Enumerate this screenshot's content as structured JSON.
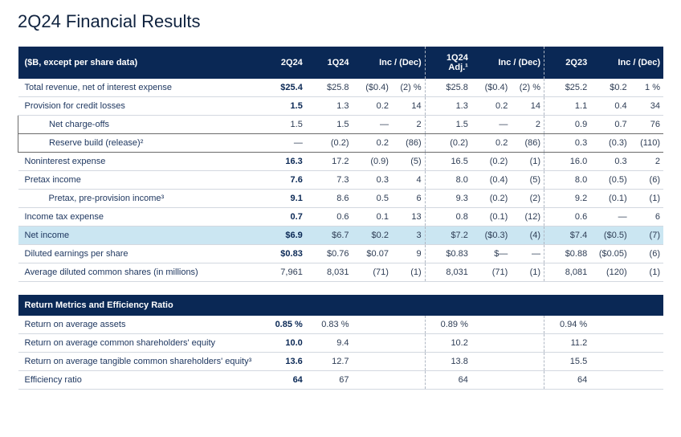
{
  "title": "2Q24 Financial Results",
  "headers": {
    "label": "($B, except per share data)",
    "c1": "2Q24",
    "c2": "1Q24",
    "c3": "Inc / (Dec)",
    "c4": "1Q24 Adj.¹",
    "c5": "Inc / (Dec)",
    "c6": "2Q23",
    "c7": "Inc / (Dec)"
  },
  "rows": [
    {
      "class": "bold",
      "cells": [
        "Total revenue, net of interest expense",
        "$25.4",
        "$25.8",
        "($0.4)",
        "(2) %",
        "$25.8",
        "($0.4)",
        "(2) %",
        "$25.2",
        "$0.2",
        "1  %"
      ]
    },
    {
      "class": "bold",
      "cells": [
        "Provision for credit losses",
        "1.5",
        "1.3",
        "0.2",
        "14",
        "1.3",
        "0.2",
        "14",
        "1.1",
        "0.4",
        "34"
      ]
    },
    {
      "class": "indent boxrow",
      "cells": [
        "Net charge-offs",
        "1.5",
        "1.5",
        "—",
        "2",
        "1.5",
        "—",
        "2",
        "0.9",
        "0.7",
        "76"
      ]
    },
    {
      "class": "indent boxrow",
      "cells": [
        "Reserve build (release)²",
        "—",
        "(0.2)",
        "0.2",
        "(86)",
        "(0.2)",
        "0.2",
        "(86)",
        "0.3",
        "(0.3)",
        "(110)"
      ]
    },
    {
      "class": "bold thickline",
      "cells": [
        "Noninterest expense",
        "16.3",
        "17.2",
        "(0.9)",
        "(5)",
        "16.5",
        "(0.2)",
        "(1)",
        "16.0",
        "0.3",
        "2"
      ]
    },
    {
      "class": "bold thickline",
      "cells": [
        "Pretax income",
        "7.6",
        "7.3",
        "0.3",
        "4",
        "8.0",
        "(0.4)",
        "(5)",
        "8.0",
        "(0.5)",
        "(6)"
      ]
    },
    {
      "class": "indent bold",
      "cells": [
        "Pretax, pre-provision income³",
        "9.1",
        "8.6",
        "0.5",
        "6",
        "9.3",
        "(0.2)",
        "(2)",
        "9.2",
        "(0.1)",
        "(1)"
      ]
    },
    {
      "class": "bold",
      "cells": [
        "Income tax expense",
        "0.7",
        "0.6",
        "0.1",
        "13",
        "0.8",
        "(0.1)",
        "(12)",
        "0.6",
        "—",
        "6"
      ]
    },
    {
      "class": "bold hl",
      "cells": [
        "Net income",
        "$6.9",
        "$6.7",
        "$0.2",
        "3",
        "$7.2",
        "($0.3)",
        "(4)",
        "$7.4",
        "($0.5)",
        "(7)"
      ]
    },
    {
      "class": "bold",
      "cells": [
        "Diluted earnings per share",
        "$0.83",
        "$0.76",
        "$0.07",
        "9",
        "$0.83",
        "$—",
        "—",
        "$0.88",
        "($0.05)",
        "(6)"
      ]
    },
    {
      "class": "",
      "cells": [
        "Average diluted common shares (in millions)",
        "7,961",
        "8,031",
        "(71)",
        "(1)",
        "8,031",
        "(71)",
        "(1)",
        "8,081",
        "(120)",
        "(1)"
      ]
    }
  ],
  "section2": {
    "header": "Return Metrics and Efficiency Ratio",
    "rows": [
      {
        "class": "bold2",
        "cells": [
          "Return on average assets",
          "0.85  %",
          "0.83  %",
          "",
          "",
          "0.89  %",
          "",
          "",
          "0.94  %",
          "",
          ""
        ]
      },
      {
        "class": "bold2",
        "cells": [
          "Return on average common shareholders' equity",
          "10.0",
          "9.4",
          "",
          "",
          "10.2",
          "",
          "",
          "11.2",
          "",
          ""
        ]
      },
      {
        "class": "bold2",
        "cells": [
          "Return on average tangible common shareholders' equity³",
          "13.6",
          "12.7",
          "",
          "",
          "13.8",
          "",
          "",
          "15.5",
          "",
          ""
        ]
      },
      {
        "class": "bold2",
        "cells": [
          "Efficiency ratio",
          "64",
          "67",
          "",
          "",
          "64",
          "",
          "",
          "64",
          "",
          ""
        ]
      }
    ]
  }
}
